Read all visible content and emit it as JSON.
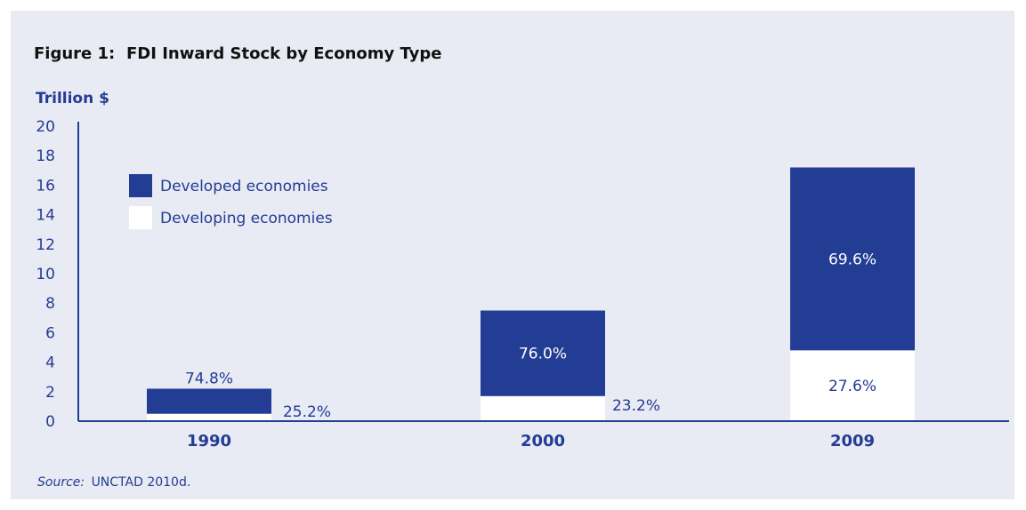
{
  "figure": {
    "label": "Figure 1:",
    "title": "FDI Inward Stock by Economy Type"
  },
  "source": {
    "prefix": "Source:",
    "text": "UNCTAD 2010d."
  },
  "colors": {
    "developed": "#233c94",
    "developing": "#ffffff",
    "text": "#233c94",
    "panel": "#e8eaf4"
  },
  "chart_data": {
    "type": "bar",
    "stacked": true,
    "ylabel": "Trillion $",
    "ylim": [
      0,
      20
    ],
    "yticks": [
      0,
      2,
      4,
      6,
      8,
      10,
      12,
      14,
      16,
      18,
      20
    ],
    "categories": [
      "1990",
      "2000",
      "2009"
    ],
    "series": [
      {
        "name": "Developing economies",
        "values": [
          0.5,
          1.7,
          4.8
        ],
        "labels": [
          "25.2%",
          "23.2%",
          "27.6%"
        ]
      },
      {
        "name": "Developed economies",
        "values": [
          1.7,
          5.8,
          12.4
        ],
        "labels": [
          "74.8%",
          "76.0%",
          "69.6%"
        ]
      }
    ],
    "legend": [
      "Developed economies",
      "Developing economies"
    ],
    "legend_position": "top-left",
    "grid": false
  }
}
